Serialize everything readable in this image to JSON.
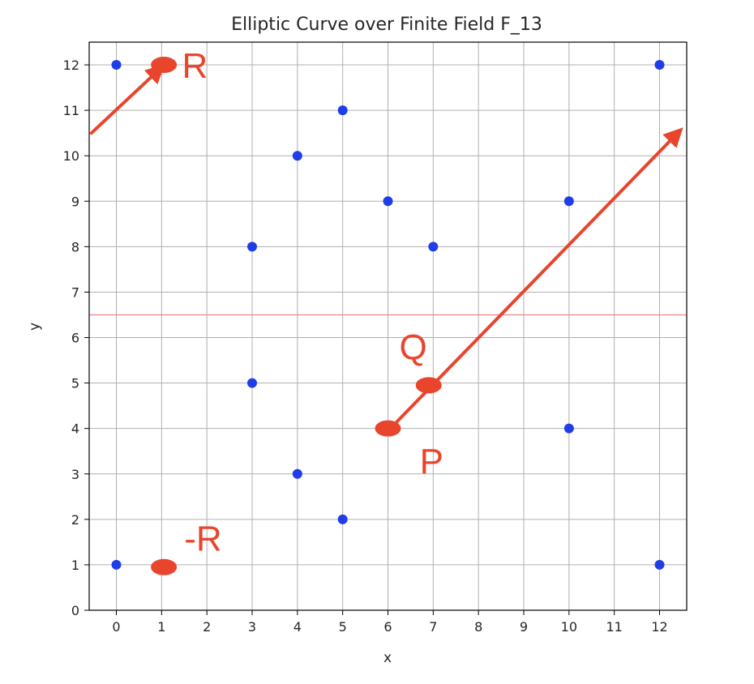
{
  "chart_data": {
    "type": "scatter",
    "title": "Elliptic Curve over Finite Field F_13",
    "xlabel": "x",
    "ylabel": "y",
    "xlim": [
      -0.6,
      12.6
    ],
    "ylim": [
      0,
      12.5
    ],
    "xticks": [
      0,
      1,
      2,
      3,
      4,
      5,
      6,
      7,
      8,
      9,
      10,
      11,
      12
    ],
    "yticks": [
      0,
      1,
      2,
      3,
      4,
      5,
      6,
      7,
      8,
      9,
      10,
      11,
      12
    ],
    "grid": true,
    "point_color": "#1f3ee8",
    "points": [
      {
        "x": 0,
        "y": 1
      },
      {
        "x": 0,
        "y": 12
      },
      {
        "x": 1,
        "y": 1
      },
      {
        "x": 1,
        "y": 12
      },
      {
        "x": 3,
        "y": 5
      },
      {
        "x": 3,
        "y": 8
      },
      {
        "x": 4,
        "y": 3
      },
      {
        "x": 4,
        "y": 10
      },
      {
        "x": 5,
        "y": 2
      },
      {
        "x": 5,
        "y": 11
      },
      {
        "x": 6,
        "y": 4
      },
      {
        "x": 6,
        "y": 9
      },
      {
        "x": 7,
        "y": 5
      },
      {
        "x": 7,
        "y": 8
      },
      {
        "x": 10,
        "y": 4
      },
      {
        "x": 10,
        "y": 9
      },
      {
        "x": 12,
        "y": 1
      },
      {
        "x": 12,
        "y": 12
      }
    ],
    "hline": {
      "y": 6.5,
      "color": "#e88a8a"
    },
    "annotations": {
      "color": "#e8452c",
      "labels": [
        {
          "text": "R",
          "x": 1.45,
          "y": 12.0
        },
        {
          "text": "Q",
          "x": 6.25,
          "y": 5.8
        },
        {
          "text": "P",
          "x": 6.7,
          "y": 3.3
        },
        {
          "text": "-R",
          "x": 1.5,
          "y": 1.6
        }
      ],
      "blobs": [
        {
          "x": 1.05,
          "y": 12.0
        },
        {
          "x": 6.9,
          "y": 4.95
        },
        {
          "x": 6.0,
          "y": 4.0
        },
        {
          "x": 1.05,
          "y": 0.95
        }
      ],
      "arrows": [
        {
          "from": [
            -0.55,
            10.5
          ],
          "to": [
            0.95,
            11.9
          ]
        },
        {
          "from": [
            6.2,
            4.15
          ],
          "to": [
            12.4,
            10.5
          ]
        }
      ]
    }
  }
}
